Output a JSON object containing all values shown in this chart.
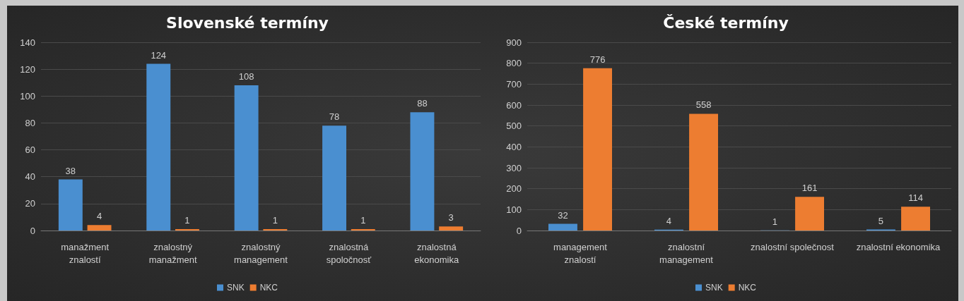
{
  "chart_data": [
    {
      "type": "bar",
      "title": "Slovenské termíny",
      "categories": [
        "manažment\nznalostí",
        "znalostný\nmanažment",
        "znalostný\nmanagement",
        "znalostná\nspoločnosť",
        "znalostná\nekonomika"
      ],
      "series": [
        {
          "name": "SNK",
          "color": "#4a8fd0",
          "values": [
            38,
            124,
            108,
            78,
            88
          ]
        },
        {
          "name": "NKC",
          "color": "#ed7d31",
          "values": [
            4,
            1,
            1,
            1,
            3
          ]
        }
      ],
      "ylim": [
        0,
        140
      ],
      "yticks": [
        0,
        20,
        40,
        60,
        80,
        100,
        120,
        140
      ],
      "grid": "y",
      "legend": "bottom",
      "data_labels": true
    },
    {
      "type": "bar",
      "title": "České termíny",
      "categories": [
        "management\nznalostí",
        "znalostní\nmanagement",
        "znalostní společnost",
        "znalostní ekonomika"
      ],
      "series": [
        {
          "name": "SNK",
          "color": "#4a8fd0",
          "values": [
            32,
            4,
            1,
            5
          ]
        },
        {
          "name": "NKC",
          "color": "#ed7d31",
          "values": [
            776,
            558,
            161,
            114
          ]
        }
      ],
      "ylim": [
        0,
        900
      ],
      "yticks": [
        0,
        100,
        200,
        300,
        400,
        500,
        600,
        700,
        800,
        900
      ],
      "grid": "y",
      "legend": "bottom",
      "data_labels": true
    }
  ]
}
